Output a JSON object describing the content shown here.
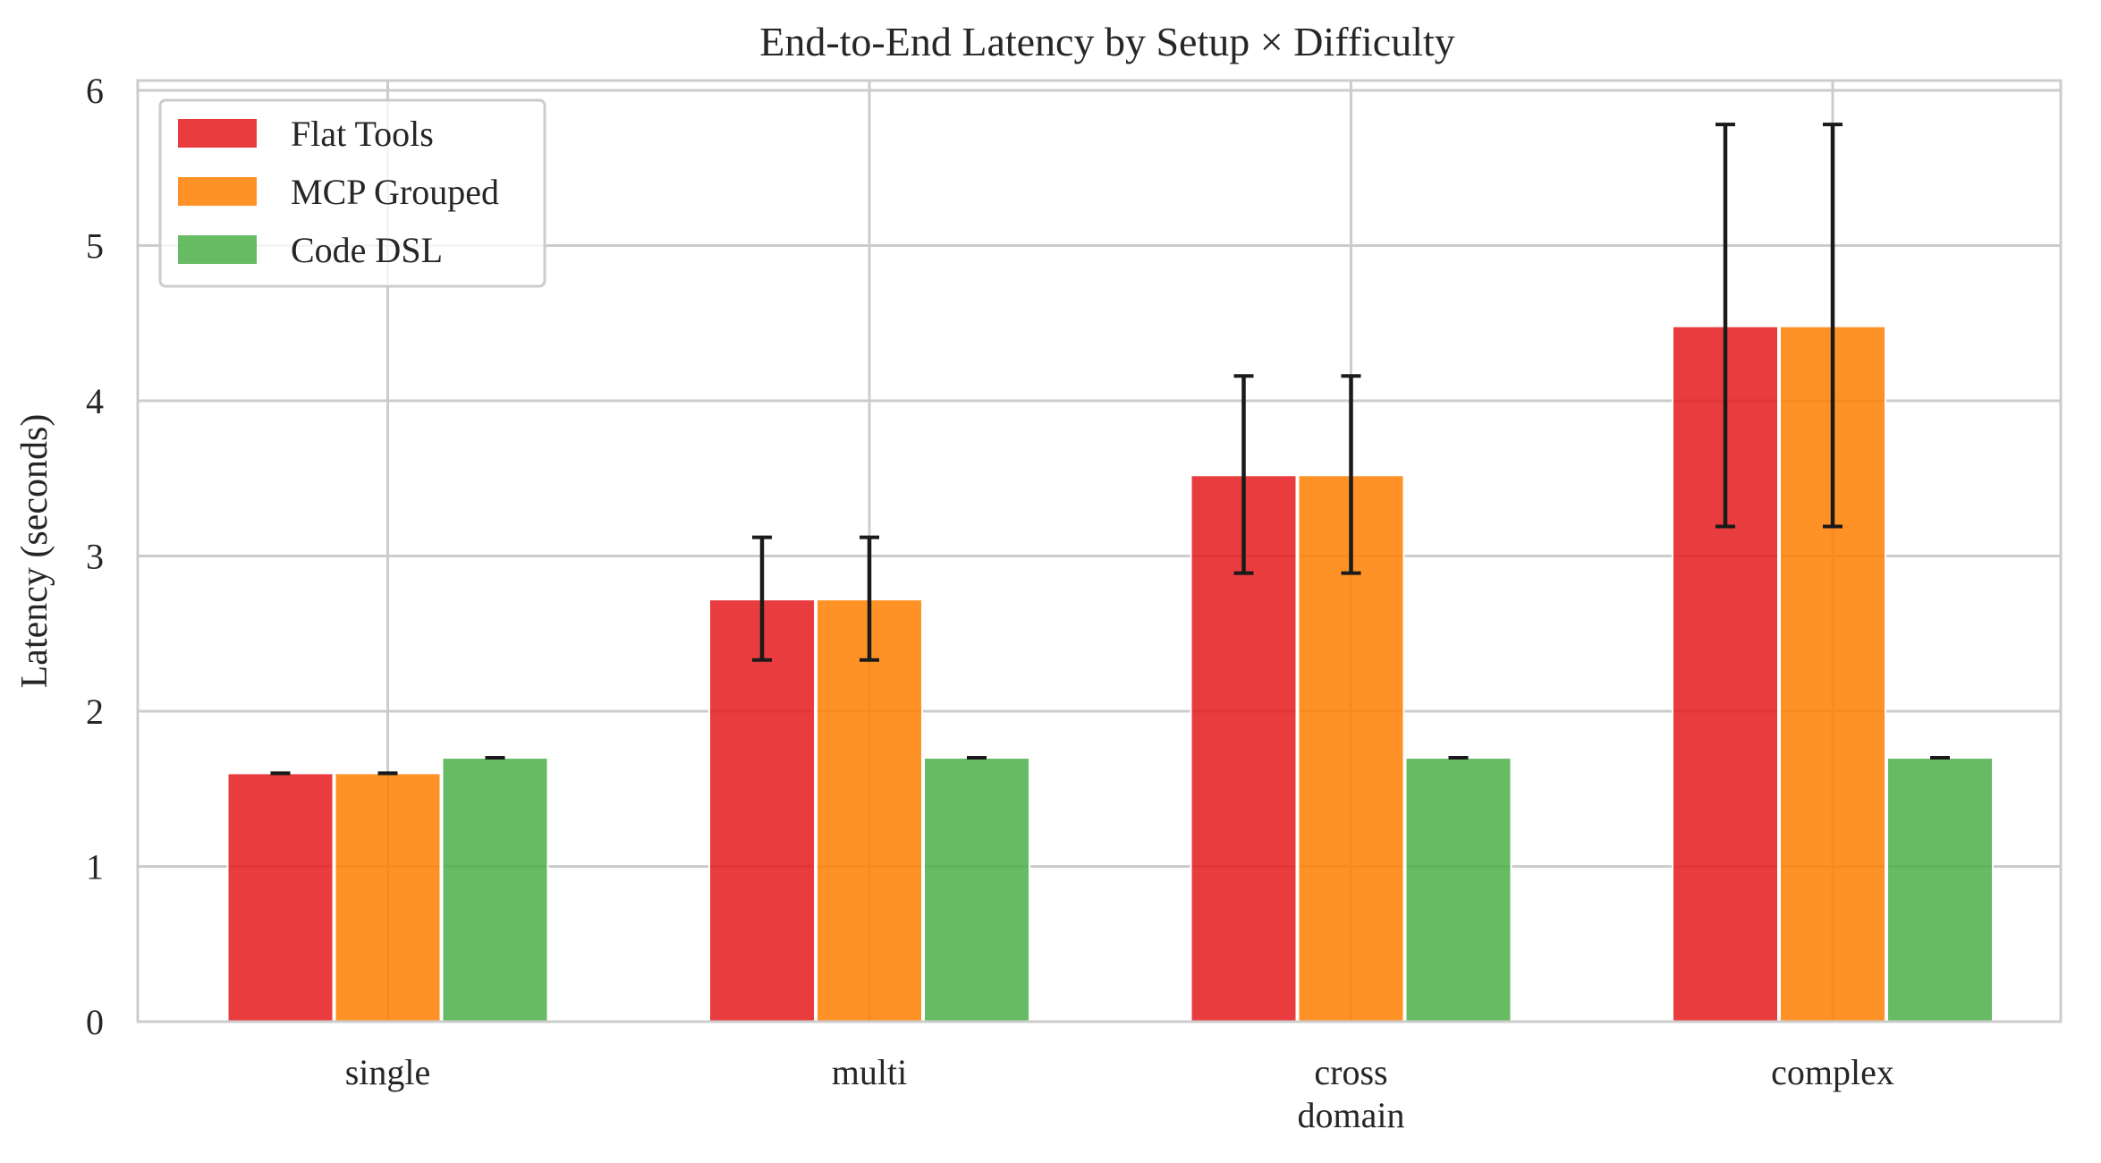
{
  "chart_data": {
    "type": "bar",
    "title": "End-to-End Latency by Setup × Difficulty",
    "xlabel": "",
    "ylabel": "Latency (seconds)",
    "categories": [
      "single",
      "multi",
      "cross\ndomain",
      "complex"
    ],
    "ylim": [
      0,
      6.05
    ],
    "yticks": [
      0,
      1,
      2,
      3,
      4,
      5,
      6
    ],
    "grid": true,
    "legend_position": "upper-left",
    "series": [
      {
        "name": "Flat Tools",
        "color": "#e41a1c",
        "values": [
          1.6,
          2.72,
          3.52,
          4.48
        ],
        "err_low": [
          1.6,
          2.33,
          2.89,
          3.19
        ],
        "err_high": [
          1.6,
          3.12,
          4.16,
          5.78
        ]
      },
      {
        "name": "MCP Grouped",
        "color": "#ff7f00",
        "values": [
          1.6,
          2.72,
          3.52,
          4.48
        ],
        "err_low": [
          1.6,
          2.33,
          2.89,
          3.19
        ],
        "err_high": [
          1.6,
          3.12,
          4.16,
          5.78
        ]
      },
      {
        "name": "Code DSL",
        "color": "#4daf4a",
        "values": [
          1.7,
          1.7,
          1.7,
          1.7
        ],
        "err_low": [
          1.7,
          1.7,
          1.7,
          1.7
        ],
        "err_high": [
          1.7,
          1.7,
          1.7,
          1.7
        ]
      }
    ]
  }
}
